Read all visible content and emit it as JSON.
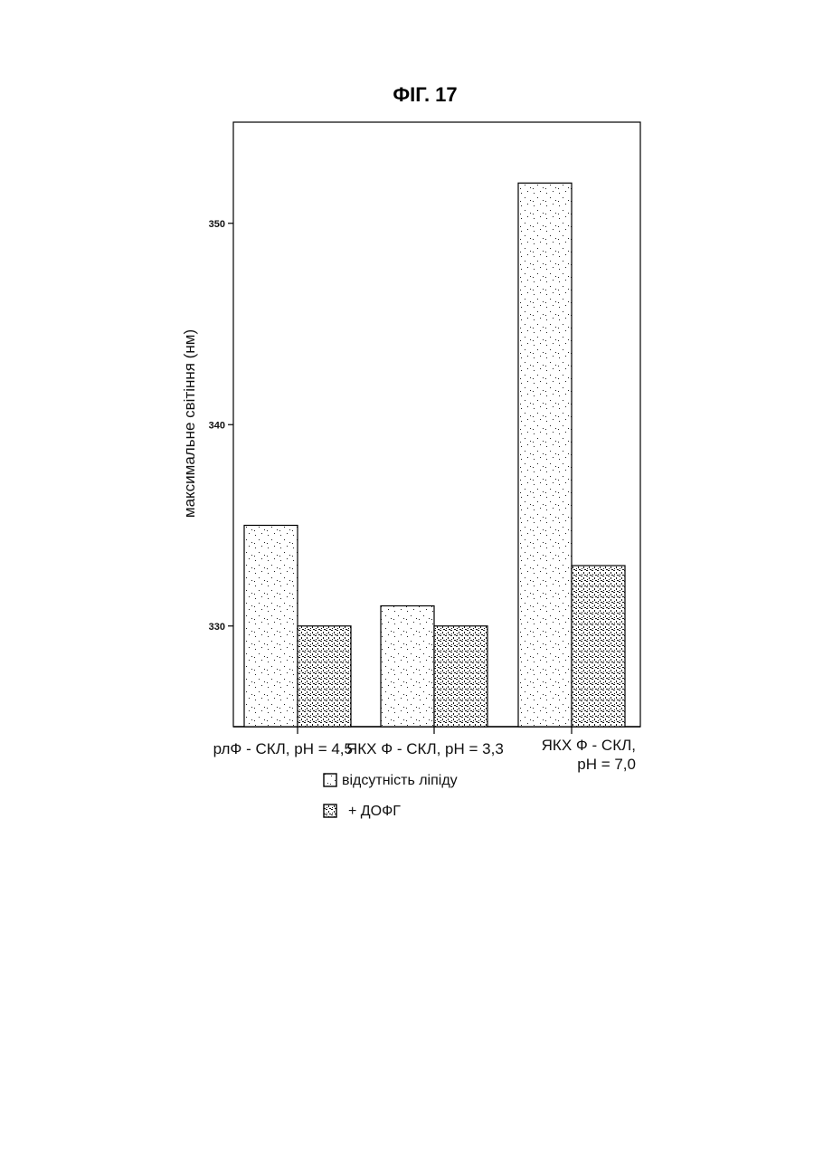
{
  "chart_data": {
    "type": "bar",
    "title": "ФІГ. 17",
    "ylabel": "максимальне світіння (нм)",
    "xlabel": "",
    "categories": [
      [
        "рлФ - СКЛ, pH = 4,5"
      ],
      [
        "ЯКХ Ф - СКЛ, pH = 3,3"
      ],
      [
        "ЯКХ Ф - СКЛ,",
        "pH = 7,0"
      ]
    ],
    "series": [
      {
        "name": "відсутність ліпіду",
        "values": [
          335,
          331,
          352
        ],
        "pattern": "light-stipple"
      },
      {
        "name": "+ ДОФГ",
        "values": [
          330,
          330,
          333
        ],
        "pattern": "dense-stipple"
      }
    ],
    "ylim": [
      325,
      355
    ],
    "yticks": [
      330,
      340,
      350
    ],
    "grid": false,
    "legend_position": "bottom-center"
  }
}
